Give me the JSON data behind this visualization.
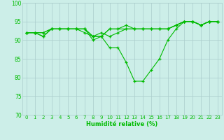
{
  "xlabel": "Humidité relative (%)",
  "xlim": [
    -0.5,
    23.5
  ],
  "ylim": [
    70,
    100
  ],
  "yticks": [
    70,
    75,
    80,
    85,
    90,
    95,
    100
  ],
  "xticks": [
    0,
    1,
    2,
    3,
    4,
    5,
    6,
    7,
    8,
    9,
    10,
    11,
    12,
    13,
    14,
    15,
    16,
    17,
    18,
    19,
    20,
    21,
    22,
    23
  ],
  "bg_color": "#cceee8",
  "grid_color": "#aacccc",
  "line_color": "#00bb00",
  "lines": [
    [
      92,
      92,
      92,
      93,
      93,
      93,
      93,
      93,
      90,
      91,
      88,
      88,
      84,
      79,
      79,
      82,
      85,
      90,
      93,
      95,
      95,
      94,
      95,
      95
    ],
    [
      92,
      92,
      91,
      93,
      93,
      93,
      93,
      92,
      91,
      92,
      91,
      92,
      93,
      93,
      93,
      93,
      93,
      93,
      94,
      95,
      95,
      94,
      95,
      95
    ],
    [
      92,
      92,
      91,
      93,
      93,
      93,
      93,
      93,
      91,
      91,
      93,
      93,
      93,
      93,
      93,
      93,
      93,
      93,
      94,
      95,
      95,
      94,
      95,
      95
    ],
    [
      92,
      92,
      92,
      93,
      93,
      93,
      93,
      93,
      91,
      91,
      93,
      93,
      94,
      93,
      93,
      93,
      93,
      93,
      94,
      95,
      95,
      94,
      95,
      95
    ]
  ],
  "xtick_fontsize": 5.0,
  "ytick_fontsize": 5.5,
  "xlabel_fontsize": 6.0
}
